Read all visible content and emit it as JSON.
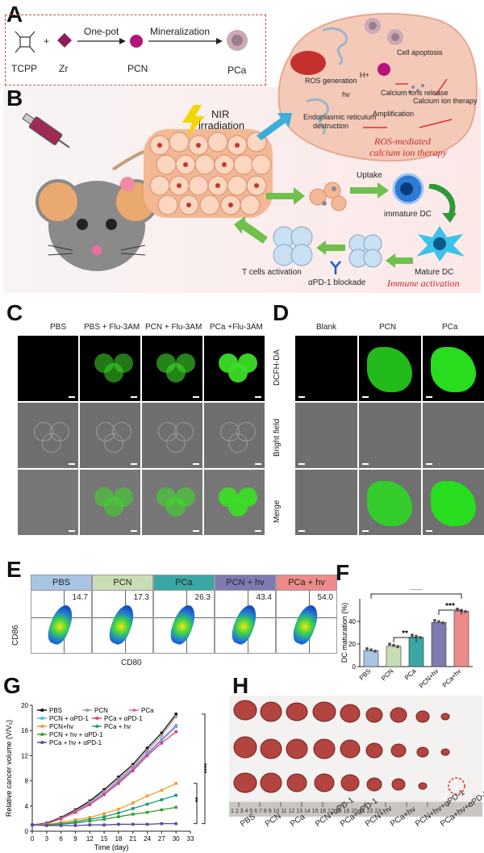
{
  "panel_labels": {
    "a": "A",
    "b": "B",
    "c": "C",
    "d": "D",
    "e": "E",
    "f": "F",
    "g": "G",
    "h": "H"
  },
  "panel_a": {
    "tcpp": "TCPP",
    "plus": "+",
    "zr": "Zr",
    "one_pot": "One-pot",
    "pcn": "PCN",
    "mineralization": "Mineralization",
    "pca": "PCa"
  },
  "panel_b": {
    "nir": "NIR",
    "irradiation": "irradiation",
    "ros_generation": "ROS generation",
    "h_plus": "H+",
    "hv": "hv",
    "calcium_release": "Calcium ions release",
    "cell_apoptosis": "Cell apoptosis",
    "er": "Endoplasmic reticulum",
    "destruction": "destruction",
    "amplification": "Amplification",
    "calcium_therapy": "Calcium ion therapy",
    "ros_title_1": "ROS-mediated",
    "ros_title_2": "calcium ion therapy",
    "uptake": "Uptake",
    "immature_dc": "immature DC",
    "mature_dc": "Mature DC",
    "t_cells": "T cells activation",
    "pd1": "αPD-1 blockade",
    "immune": "Immune activation"
  },
  "panel_c": {
    "cols": [
      "PBS",
      "PBS + Flu-3AM",
      "PCN + Flu-3AM",
      "PCa +Flu-3AM"
    ]
  },
  "panel_d": {
    "cols": [
      "Blank",
      "PCN",
      "PCa"
    ],
    "rows": [
      "DCFH-DA",
      "Bright field",
      "Merge"
    ]
  },
  "panel_e": {
    "groups": [
      {
        "name": "PBS",
        "value": "14.7",
        "color": "#a9c5e4"
      },
      {
        "name": "PCN",
        "value": "17.3",
        "color": "#c9ddb5"
      },
      {
        "name": "PCa",
        "value": "26.3",
        "color": "#3aa7a3"
      },
      {
        "name": "PCN + hv",
        "value": "43.4",
        "color": "#7f7bb0"
      },
      {
        "name": "PCa + hv",
        "value": "54.0",
        "color": "#ee8a8a"
      }
    ],
    "ylabel": "CD86",
    "xlabel": "CD80"
  },
  "chart_data": [
    {
      "type": "bar",
      "categories": [
        "PBS",
        "PCN",
        "PCa",
        "PCN+hv",
        "PCa+hv"
      ],
      "values": [
        14,
        18,
        26,
        39,
        49
      ],
      "ylabel": "DC maturation (%)",
      "yticks": [
        "0",
        "20",
        "40"
      ],
      "ylim": [
        0,
        60
      ],
      "significance": [
        "****",
        "***",
        "**"
      ],
      "colors": [
        "#a9c5e4",
        "#c9ddb5",
        "#3aa7a3",
        "#7f7bb0",
        "#ee8a8a"
      ]
    },
    {
      "type": "line",
      "x": [
        0,
        3,
        6,
        9,
        12,
        15,
        18,
        21,
        24,
        27,
        30
      ],
      "xticks": [
        "0",
        "3",
        "6",
        "9",
        "12",
        "15",
        "18",
        "21",
        "24",
        "27",
        "30",
        "33"
      ],
      "yticks": [
        "0",
        "4",
        "8",
        "12",
        "16",
        "20"
      ],
      "xlabel": "Time (day)",
      "ylabel": "Relative cancer volume (V/V₀)",
      "ylim": [
        0,
        20
      ],
      "significance": [
        "**",
        "****"
      ],
      "series": [
        {
          "name": "PBS",
          "color": "#111111",
          "values": [
            1,
            1.3,
            2.2,
            3.4,
            4.8,
            6.6,
            8.6,
            10.6,
            13.2,
            15.6,
            18.6
          ]
        },
        {
          "name": "PCN",
          "color": "#a0a0a0",
          "values": [
            1,
            1.2,
            2.1,
            3.2,
            4.6,
            6.3,
            8.3,
            10.3,
            12.8,
            15.2,
            18.2
          ]
        },
        {
          "name": "PCa",
          "color": "#d36cb2",
          "values": [
            1,
            1.2,
            2.0,
            3.1,
            4.4,
            6.0,
            8.0,
            10.0,
            12.4,
            14.6,
            16.8
          ]
        },
        {
          "name": "PCN + αPD-1",
          "color": "#4bb6e3",
          "values": [
            1,
            1.2,
            2.0,
            3.0,
            4.3,
            5.9,
            7.8,
            9.8,
            12.2,
            14.4,
            16.6
          ]
        },
        {
          "name": "PCa + αPD-1",
          "color": "#e23b84",
          "values": [
            1,
            1.2,
            2.0,
            3.0,
            4.2,
            5.8,
            7.6,
            9.6,
            12.0,
            14.0,
            15.8
          ]
        },
        {
          "name": "PCN+hv",
          "color": "#f59b2a",
          "values": [
            1,
            1.1,
            1.4,
            1.8,
            2.2,
            2.8,
            3.5,
            4.5,
            5.6,
            6.5,
            7.6
          ]
        },
        {
          "name": "PCa + hv",
          "color": "#1a9a7a",
          "values": [
            1,
            1.0,
            1.2,
            1.5,
            1.9,
            2.3,
            2.9,
            3.6,
            4.3,
            5.0,
            5.7
          ]
        },
        {
          "name": "PCN + hv + αPD-1",
          "color": "#33a02c",
          "values": [
            1,
            1.0,
            1.1,
            1.3,
            1.6,
            1.9,
            2.3,
            2.7,
            3.0,
            3.4,
            3.8
          ]
        },
        {
          "name": "PCa + hv + αPD-1",
          "color": "#5b48a2",
          "values": [
            1,
            0.9,
            0.9,
            0.9,
            1.0,
            1.0,
            1.1,
            1.1,
            1.1,
            1.2,
            1.2
          ]
        }
      ]
    }
  ],
  "panel_h": {
    "labels": [
      "PBS",
      "PCN",
      "PCa",
      "PCN+αPD-1",
      "PCa+αPD-1",
      "PCN+hv",
      "PCa+hv",
      "PCN+hv+αPD-1",
      "PCa+hv+αPD-1"
    ],
    "ruler": "1 2 3 4 5 6 7 8 9 10 11 12 13 14 15 16 17 18 19 20 21 22 23"
  }
}
